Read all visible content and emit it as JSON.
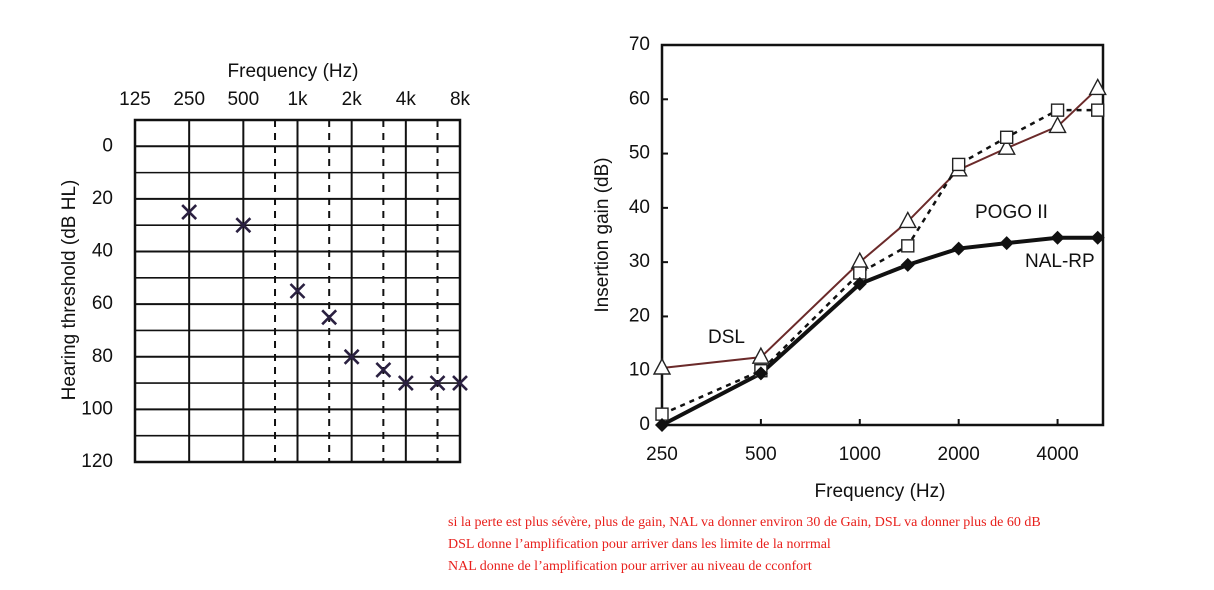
{
  "chart_data": [
    {
      "type": "scatter",
      "x_label": "Frequency (Hz)",
      "y_label": "Hearing threshold (dB HL)",
      "x": [
        250,
        500,
        1000,
        1500,
        2000,
        3000,
        4000,
        6000,
        8000
      ],
      "values": [
        25,
        30,
        55,
        65,
        80,
        85,
        90,
        90,
        90
      ],
      "xscale": "log",
      "xlim": [
        125,
        8000
      ],
      "ylim": [
        120,
        -10
      ],
      "xticks": [
        125,
        250,
        500,
        {
          "value": 1000,
          "label": "1k"
        },
        {
          "value": 2000,
          "label": "2k"
        },
        {
          "value": 4000,
          "label": "4k"
        },
        {
          "value": 8000,
          "label": "8k"
        }
      ],
      "minor_xticks": [
        750,
        1500,
        3000,
        6000
      ],
      "yticks": [
        0,
        20,
        40,
        60,
        80,
        100,
        120
      ],
      "minor_yticks": [
        10,
        30,
        50,
        70,
        90,
        110
      ],
      "marker": "x",
      "color": "#2a2040",
      "grid": true
    },
    {
      "type": "line",
      "x_label": "Frequency (Hz)",
      "y_label": "Insertion gain (dB)",
      "x": [
        250,
        500,
        1000,
        1400,
        2000,
        2800,
        4000,
        5300
      ],
      "xscale": "log",
      "xlim": [
        250,
        5500
      ],
      "ylim": [
        0,
        70
      ],
      "xticks": [
        250,
        500,
        1000,
        2000,
        4000
      ],
      "yticks": [
        0,
        10,
        20,
        30,
        40,
        50,
        60,
        70
      ],
      "series": [
        {
          "name": "DSL",
          "color": "#6b2a2a",
          "marker": "triangle",
          "style": "solid",
          "width": 2,
          "values": [
            10.5,
            12.5,
            30,
            37.5,
            47,
            51,
            55,
            62
          ]
        },
        {
          "name": "POGO II",
          "color": "#111111",
          "marker": "square",
          "style": "dashed",
          "width": 2.5,
          "values": [
            2,
            10,
            28,
            33,
            48,
            53,
            58,
            58
          ]
        },
        {
          "name": "NAL-RP",
          "color": "#111111",
          "marker": "diamond",
          "style": "solid",
          "width": 4,
          "values": [
            0,
            9.5,
            26,
            29.5,
            32.5,
            33.5,
            34.5,
            34.5
          ]
        }
      ]
    }
  ],
  "notes": [
    "si la perte est plus sévère, plus de gain, NAL va donner environ 30 de Gain, DSL va donner plus de 60 dB",
    "DSL donne l’amplification pour arriver dans les limite de la norrmal",
    "NAL donne de l’amplification pour arriver au niveau de cconfort"
  ]
}
